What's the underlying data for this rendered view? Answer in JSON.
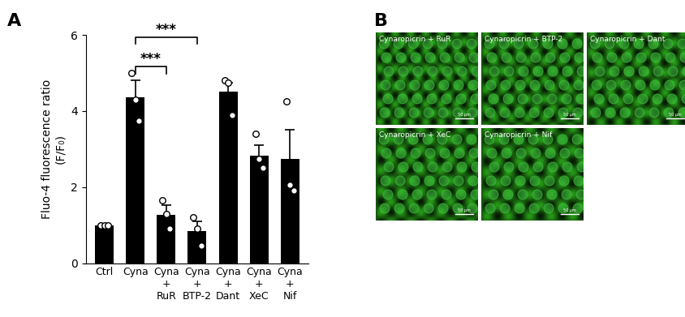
{
  "chart_data": {
    "type": "bar",
    "panel_label": "A",
    "categories": [
      "Ctrl",
      "Cyna",
      "Cyna\n+\nRuR",
      "Cyna\n+\nBTP-2",
      "Cyna\n+\nDant",
      "Cyna\n+\nXeC",
      "Cyna\n+\nNif"
    ],
    "values": [
      1.0,
      4.35,
      1.27,
      0.85,
      4.5,
      2.83,
      2.73
    ],
    "error": [
      0.0,
      0.45,
      0.25,
      0.25,
      0.25,
      0.28,
      0.78
    ],
    "points": [
      [
        1.0,
        1.0,
        1.0
      ],
      [
        5.0,
        4.3,
        3.75
      ],
      [
        1.65,
        1.3,
        0.9
      ],
      [
        1.2,
        0.9,
        0.45
      ],
      [
        4.8,
        4.75,
        3.9
      ],
      [
        3.4,
        2.75,
        2.5
      ],
      [
        4.25,
        2.05,
        1.9
      ]
    ],
    "y_label": "Fluo-4 fluorescence ratio\n(F/F₀)",
    "color": "#000000",
    "ylim": [
      0,
      6
    ],
    "yticks": [
      0,
      2,
      4,
      6
    ],
    "significance": [
      {
        "from": "Cyna",
        "to": "Cyna\n+\nRuR",
        "label": "***"
      },
      {
        "from": "Cyna",
        "to": "Cyna\n+\nBTP-2",
        "label": "***"
      }
    ]
  },
  "panel_B": {
    "panel_label": "B",
    "images": [
      {
        "caption": "Cynaropicrin + RuR",
        "scale_bar": "50 μm"
      },
      {
        "caption": "Cynaropicrin + BTP-2",
        "scale_bar": "50 μm"
      },
      {
        "caption": "Cynaropicrin + Dant",
        "scale_bar": "50 μm"
      },
      {
        "caption": "Cynaropicrin + XeC",
        "scale_bar": "50 μm"
      },
      {
        "caption": "Cynaropicrin + Nif",
        "scale_bar": "50 μm"
      }
    ]
  }
}
